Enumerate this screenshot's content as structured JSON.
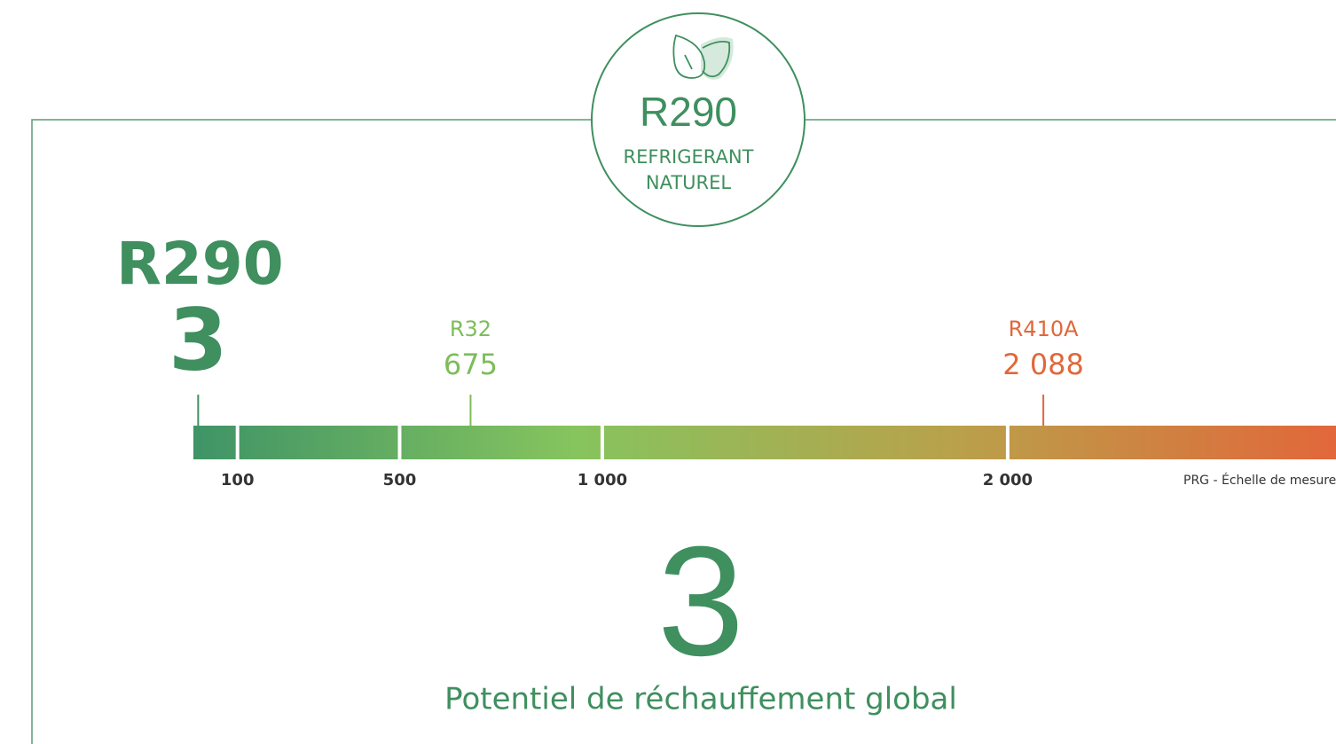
{
  "badge": {
    "name": "R290",
    "label_lines": [
      "REFRIGERANT",
      "NATUREL"
    ]
  },
  "scale": {
    "xlim": [
      0,
      2810
    ],
    "ticks": [
      {
        "value": 100,
        "label": "100"
      },
      {
        "value": 500,
        "label": "500"
      },
      {
        "value": 1000,
        "label": "1 000"
      },
      {
        "value": 2000,
        "label": "2 000"
      }
    ],
    "caption": "PRG - Échelle de mesure",
    "colors": [
      "#3f9466",
      "#86c45e",
      "#b9a14b",
      "#e2673a"
    ]
  },
  "markers": [
    {
      "name": "R290",
      "value": 3,
      "color": "#3f8f5f"
    },
    {
      "name": "R32",
      "value": 675,
      "color": "#7dbd5a"
    },
    {
      "name": "R410A",
      "value": {
        "value": 2088,
        "label": "2 088"
      },
      "color": "#e0683c"
    }
  ],
  "result": {
    "value": 3,
    "caption": "Potentiel de réchauffement global"
  }
}
